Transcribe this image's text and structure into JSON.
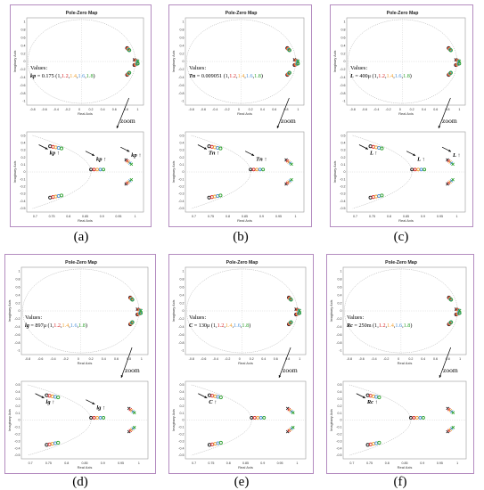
{
  "common": {
    "map_title": "Pole-Zero Map",
    "ylabel": "Imaginary Axis",
    "xlabel": "Real Axis",
    "zoom_label": "zoom",
    "values_label": "Values:",
    "factor_prefix": "(",
    "factor_suffix": ")",
    "factor_sep": ",",
    "factors": [
      "1",
      "1.2",
      "1.4",
      "1.6",
      "1.8"
    ],
    "top_xticks": [
      "-0.8",
      "-0.6",
      "-0.4",
      "-0.2",
      "0",
      "0.2",
      "0.4",
      "0.6",
      "0.8",
      "1"
    ],
    "top_yticks": [
      "1",
      "0.8",
      "0.6",
      "0.4",
      "0.2",
      "0",
      "-0.2",
      "-0.4",
      "-0.6",
      "-0.8",
      "-1"
    ],
    "zoom_xticks": [
      "0.7",
      "0.75",
      "0.8",
      "0.85",
      "0.9",
      "0.95",
      "1"
    ],
    "zoom_yticks": [
      "0.5",
      "0.4",
      "0.3",
      "0.2",
      "0.1",
      "0",
      "-0.1",
      "-0.2",
      "-0.3",
      "-0.4",
      "-0.5"
    ]
  },
  "colors": {
    "factor_colors": [
      "#1a1a1a",
      "#d62728",
      "#f0a030",
      "#4a90d9",
      "#2ca02c"
    ],
    "panel_border": "#b48cc0"
  },
  "panels": [
    {
      "id": "a",
      "caption": "(a)",
      "param": "kp",
      "value": " = 0.175",
      "annotations": [
        "kp",
        "kp",
        "kp"
      ]
    },
    {
      "id": "b",
      "caption": "(b)",
      "param": "Tn",
      "value": " = 0.009051",
      "annotations": [
        "Tn",
        "Tn"
      ]
    },
    {
      "id": "c",
      "caption": "(c)",
      "param": "L",
      "value": " = 400μ",
      "annotations": [
        "L",
        "L",
        "L"
      ]
    },
    {
      "id": "d",
      "caption": "(d)",
      "param": "lg",
      "value": " = 897μ",
      "annotations": [
        "lg",
        "lg"
      ]
    },
    {
      "id": "e",
      "caption": "(e)",
      "param": "C",
      "value": " = 130μ",
      "annotations": [
        "C"
      ]
    },
    {
      "id": "f",
      "caption": "(f)",
      "param": "Rc",
      "value": " = 250m",
      "annotations": [
        "Rc"
      ]
    }
  ]
}
